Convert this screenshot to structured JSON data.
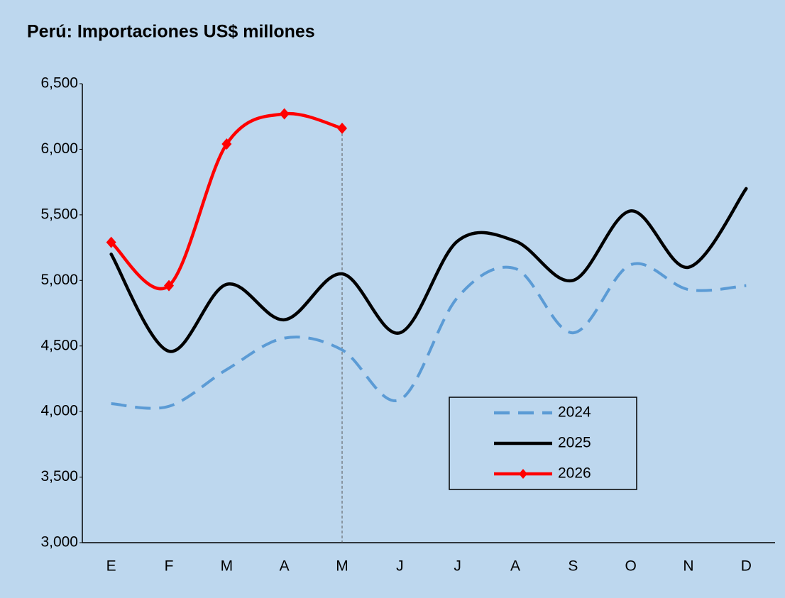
{
  "chart_data": {
    "type": "line",
    "title": "Perú: Importaciones US$ millones",
    "categories": [
      "E",
      "F",
      "M",
      "A",
      "M",
      "J",
      "J",
      "A",
      "S",
      "O",
      "N",
      "D"
    ],
    "series": [
      {
        "name": "2024",
        "color": "#5b9bd5",
        "dash": true,
        "values": [
          4060,
          4040,
          4320,
          4560,
          4470,
          4090,
          4870,
          5090,
          4600,
          5120,
          4930,
          4960
        ]
      },
      {
        "name": "2025",
        "color": "#000000",
        "values": [
          5200,
          4460,
          4970,
          4700,
          5050,
          4600,
          5300,
          5300,
          5000,
          5530,
          5100,
          5700
        ]
      },
      {
        "name": "2026",
        "color": "#ff0000",
        "marker": "diamond",
        "values": [
          5290,
          4960,
          6040,
          6270,
          6160,
          null,
          null,
          null,
          null,
          null,
          null,
          null
        ]
      }
    ],
    "ylim": [
      3000,
      6500
    ],
    "yticks": [
      {
        "value": 3000,
        "label": "3,000"
      },
      {
        "value": 3500,
        "label": "3,500"
      },
      {
        "value": 4000,
        "label": "4,000"
      },
      {
        "value": 4500,
        "label": "4,500"
      },
      {
        "value": 5000,
        "label": "5,000"
      },
      {
        "value": 5500,
        "label": "5,500"
      },
      {
        "value": 6000,
        "label": "6,000"
      },
      {
        "value": 6500,
        "label": "6,500"
      }
    ],
    "grid": false,
    "smooth": true,
    "legend": "lower right"
  }
}
